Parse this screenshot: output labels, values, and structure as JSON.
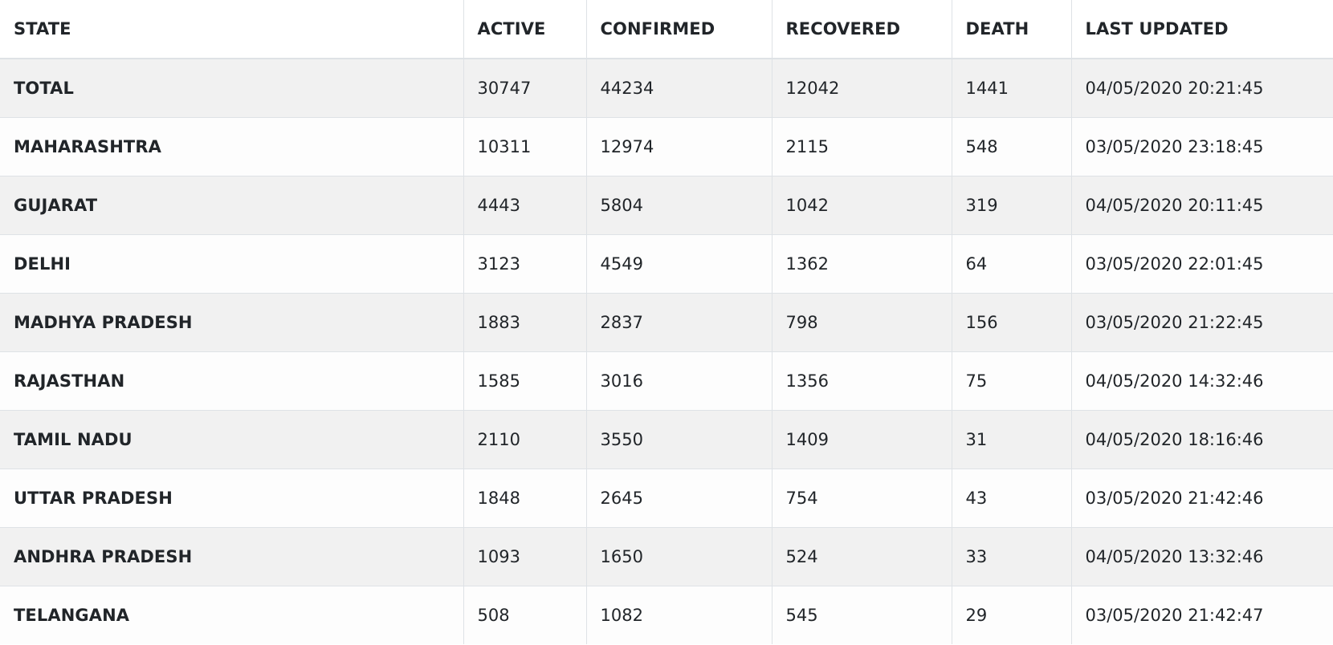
{
  "table": {
    "headers": [
      "STATE",
      "ACTIVE",
      "CONFIRMED",
      "RECOVERED",
      "DEATH",
      "LAST UPDATED"
    ],
    "rows": [
      [
        "TOTAL",
        "30747",
        "44234",
        "12042",
        "1441",
        "04/05/2020 20:21:45"
      ],
      [
        "MAHARASHTRA",
        "10311",
        "12974",
        "2115",
        "548",
        "03/05/2020 23:18:45"
      ],
      [
        "GUJARAT",
        "4443",
        "5804",
        "1042",
        "319",
        "04/05/2020 20:11:45"
      ],
      [
        "DELHI",
        "3123",
        "4549",
        "1362",
        "64",
        "03/05/2020 22:01:45"
      ],
      [
        "MADHYA PRADESH",
        "1883",
        "2837",
        "798",
        "156",
        "03/05/2020 21:22:45"
      ],
      [
        "RAJASTHAN",
        "1585",
        "3016",
        "1356",
        "75",
        "04/05/2020 14:32:46"
      ],
      [
        "TAMIL NADU",
        "2110",
        "3550",
        "1409",
        "31",
        "04/05/2020 18:16:46"
      ],
      [
        "UTTAR PRADESH",
        "1848",
        "2645",
        "754",
        "43",
        "03/05/2020 21:42:46"
      ],
      [
        "ANDHRA PRADESH",
        "1093",
        "1650",
        "524",
        "33",
        "04/05/2020 13:32:46"
      ],
      [
        "TELANGANA",
        "508",
        "1082",
        "545",
        "29",
        "03/05/2020 21:42:47"
      ]
    ]
  }
}
